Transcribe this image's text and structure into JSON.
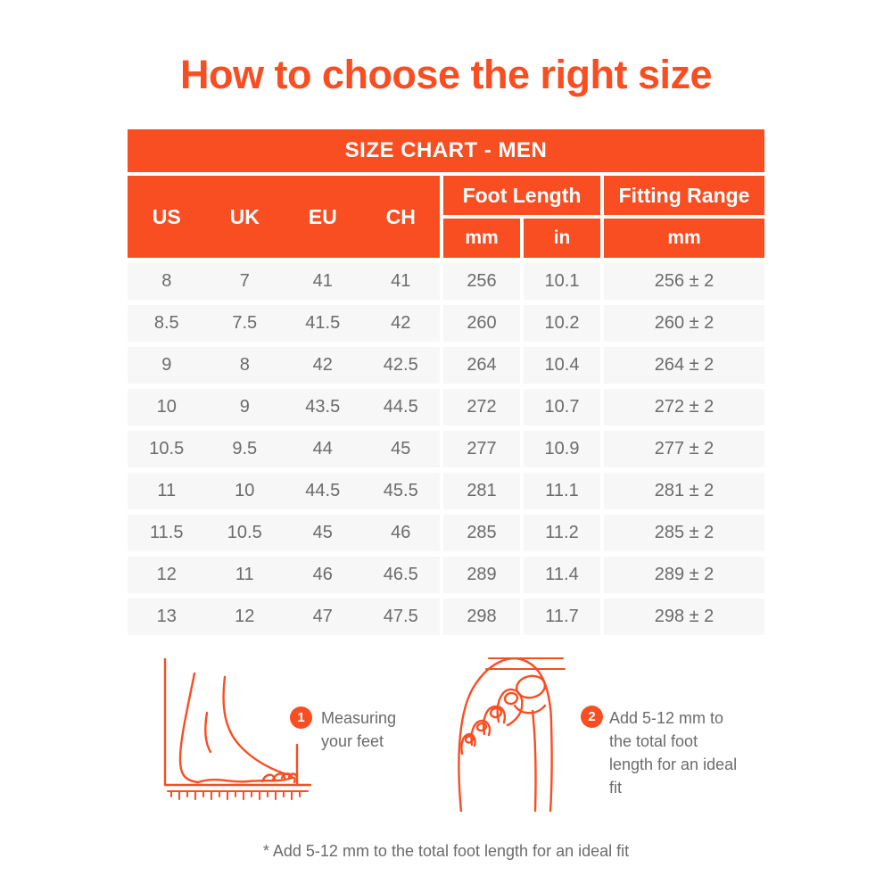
{
  "page": {
    "title": "How to choose the right size",
    "footnote": "* Add 5-12 mm to the total foot length for an ideal fit"
  },
  "colors": {
    "accent": "#F94D22",
    "row_bg": "#F7F7F7",
    "text_gray": "#6B6B6B",
    "header_text": "#FFFFFF"
  },
  "size_chart": {
    "banner": "SIZE CHART - MEN",
    "header": {
      "size_systems": [
        "US",
        "UK",
        "EU",
        "CH"
      ],
      "foot_length_label": "Foot Length",
      "foot_length_units": [
        "mm",
        "in"
      ],
      "fitting_range_label": "Fitting Range",
      "fitting_range_unit": "mm"
    },
    "rows": [
      {
        "us": "8",
        "uk": "7",
        "eu": "41",
        "ch": "41",
        "foot_mm": "256",
        "foot_in": "10.1",
        "fitting_mm": "256 ± 2"
      },
      {
        "us": "8.5",
        "uk": "7.5",
        "eu": "41.5",
        "ch": "42",
        "foot_mm": "260",
        "foot_in": "10.2",
        "fitting_mm": "260 ± 2"
      },
      {
        "us": "9",
        "uk": "8",
        "eu": "42",
        "ch": "42.5",
        "foot_mm": "264",
        "foot_in": "10.4",
        "fitting_mm": "264 ± 2"
      },
      {
        "us": "10",
        "uk": "9",
        "eu": "43.5",
        "ch": "44.5",
        "foot_mm": "272",
        "foot_in": "10.7",
        "fitting_mm": "272 ± 2"
      },
      {
        "us": "10.5",
        "uk": "9.5",
        "eu": "44",
        "ch": "45",
        "foot_mm": "277",
        "foot_in": "10.9",
        "fitting_mm": "277 ± 2"
      },
      {
        "us": "11",
        "uk": "10",
        "eu": "44.5",
        "ch": "45.5",
        "foot_mm": "281",
        "foot_in": "11.1",
        "fitting_mm": "281 ± 2"
      },
      {
        "us": "11.5",
        "uk": "10.5",
        "eu": "45",
        "ch": "46",
        "foot_mm": "285",
        "foot_in": "11.2",
        "fitting_mm": "285 ± 2"
      },
      {
        "us": "12",
        "uk": "11",
        "eu": "46",
        "ch": "46.5",
        "foot_mm": "289",
        "foot_in": "11.4",
        "fitting_mm": "289 ± 2"
      },
      {
        "us": "13",
        "uk": "12",
        "eu": "47",
        "ch": "47.5",
        "foot_mm": "298",
        "foot_in": "11.7",
        "fitting_mm": "298 ± 2"
      }
    ]
  },
  "instructions": [
    {
      "number": "1",
      "text": "Measuring your feet"
    },
    {
      "number": "2",
      "text": "Add 5-12 mm to the total foot length for an ideal fit"
    }
  ]
}
